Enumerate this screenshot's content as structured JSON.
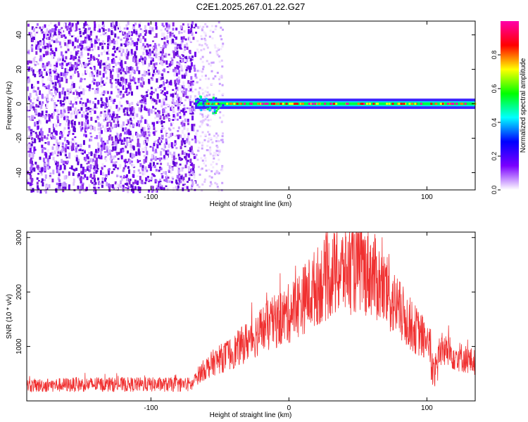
{
  "figure_title": "C2E1.2025.267.01.22.G27",
  "chart_data": [
    {
      "type": "heatmap",
      "title": "C2E1.2025.267.01.22.G27",
      "xlabel": "Height of straight line (km)",
      "ylabel": "Frequency (Hz)",
      "xlim": [
        -190,
        135
      ],
      "ylim": [
        -50,
        48
      ],
      "x_ticks": [
        -100,
        0,
        100
      ],
      "x_tick_labels": [
        "-100",
        "0",
        "100"
      ],
      "y_ticks": [
        -40,
        -20,
        0,
        20,
        40
      ],
      "y_tick_labels": [
        "-40",
        "-20",
        "0",
        "20",
        "40"
      ],
      "noise_region_x": [
        -190,
        -68
      ],
      "transition_region_x": [
        -68,
        -48
      ],
      "signal_center_frequency": 0,
      "signal_band_halfwidth_hz": 3,
      "colorbar": {
        "label": "Normalized spectral amplitude",
        "range": [
          0,
          1
        ],
        "ticks": [
          0.0,
          0.2,
          0.4,
          0.6,
          0.8
        ],
        "tick_labels": [
          "0.0",
          "0.2",
          "0.4",
          "0.6",
          "0.8"
        ],
        "colors": [
          "#ffffff",
          "#7a00ff",
          "#0000ff",
          "#00ffff",
          "#00ff00",
          "#ffff00",
          "#ff0000",
          "#ff00aa"
        ]
      },
      "grid": false
    },
    {
      "type": "line",
      "xlabel": "Height of straight line (km)",
      "ylabel": "SNR (10 * v/v)",
      "xlim": [
        -190,
        135
      ],
      "ylim": [
        0,
        3100
      ],
      "x_ticks": [
        -100,
        0,
        100
      ],
      "x_tick_labels": [
        "-100",
        "0",
        "100"
      ],
      "y_ticks": [
        1000,
        2000,
        3000
      ],
      "y_tick_labels": [
        "1000",
        "2000",
        "3000"
      ],
      "color": "#f03030",
      "grid": false,
      "envelope": {
        "x": [
          -190,
          -150,
          -100,
          -70,
          -65,
          -55,
          -40,
          -30,
          -20,
          -10,
          0,
          10,
          20,
          30,
          40,
          50,
          60,
          70,
          80,
          90,
          100,
          105,
          110,
          120,
          135
        ],
        "y": [
          280,
          300,
          300,
          300,
          500,
          700,
          900,
          1100,
          1300,
          1450,
          1600,
          1850,
          2100,
          2300,
          2400,
          2450,
          2350,
          2000,
          1650,
          1350,
          1100,
          900,
          950,
          850,
          700
        ]
      }
    }
  ]
}
